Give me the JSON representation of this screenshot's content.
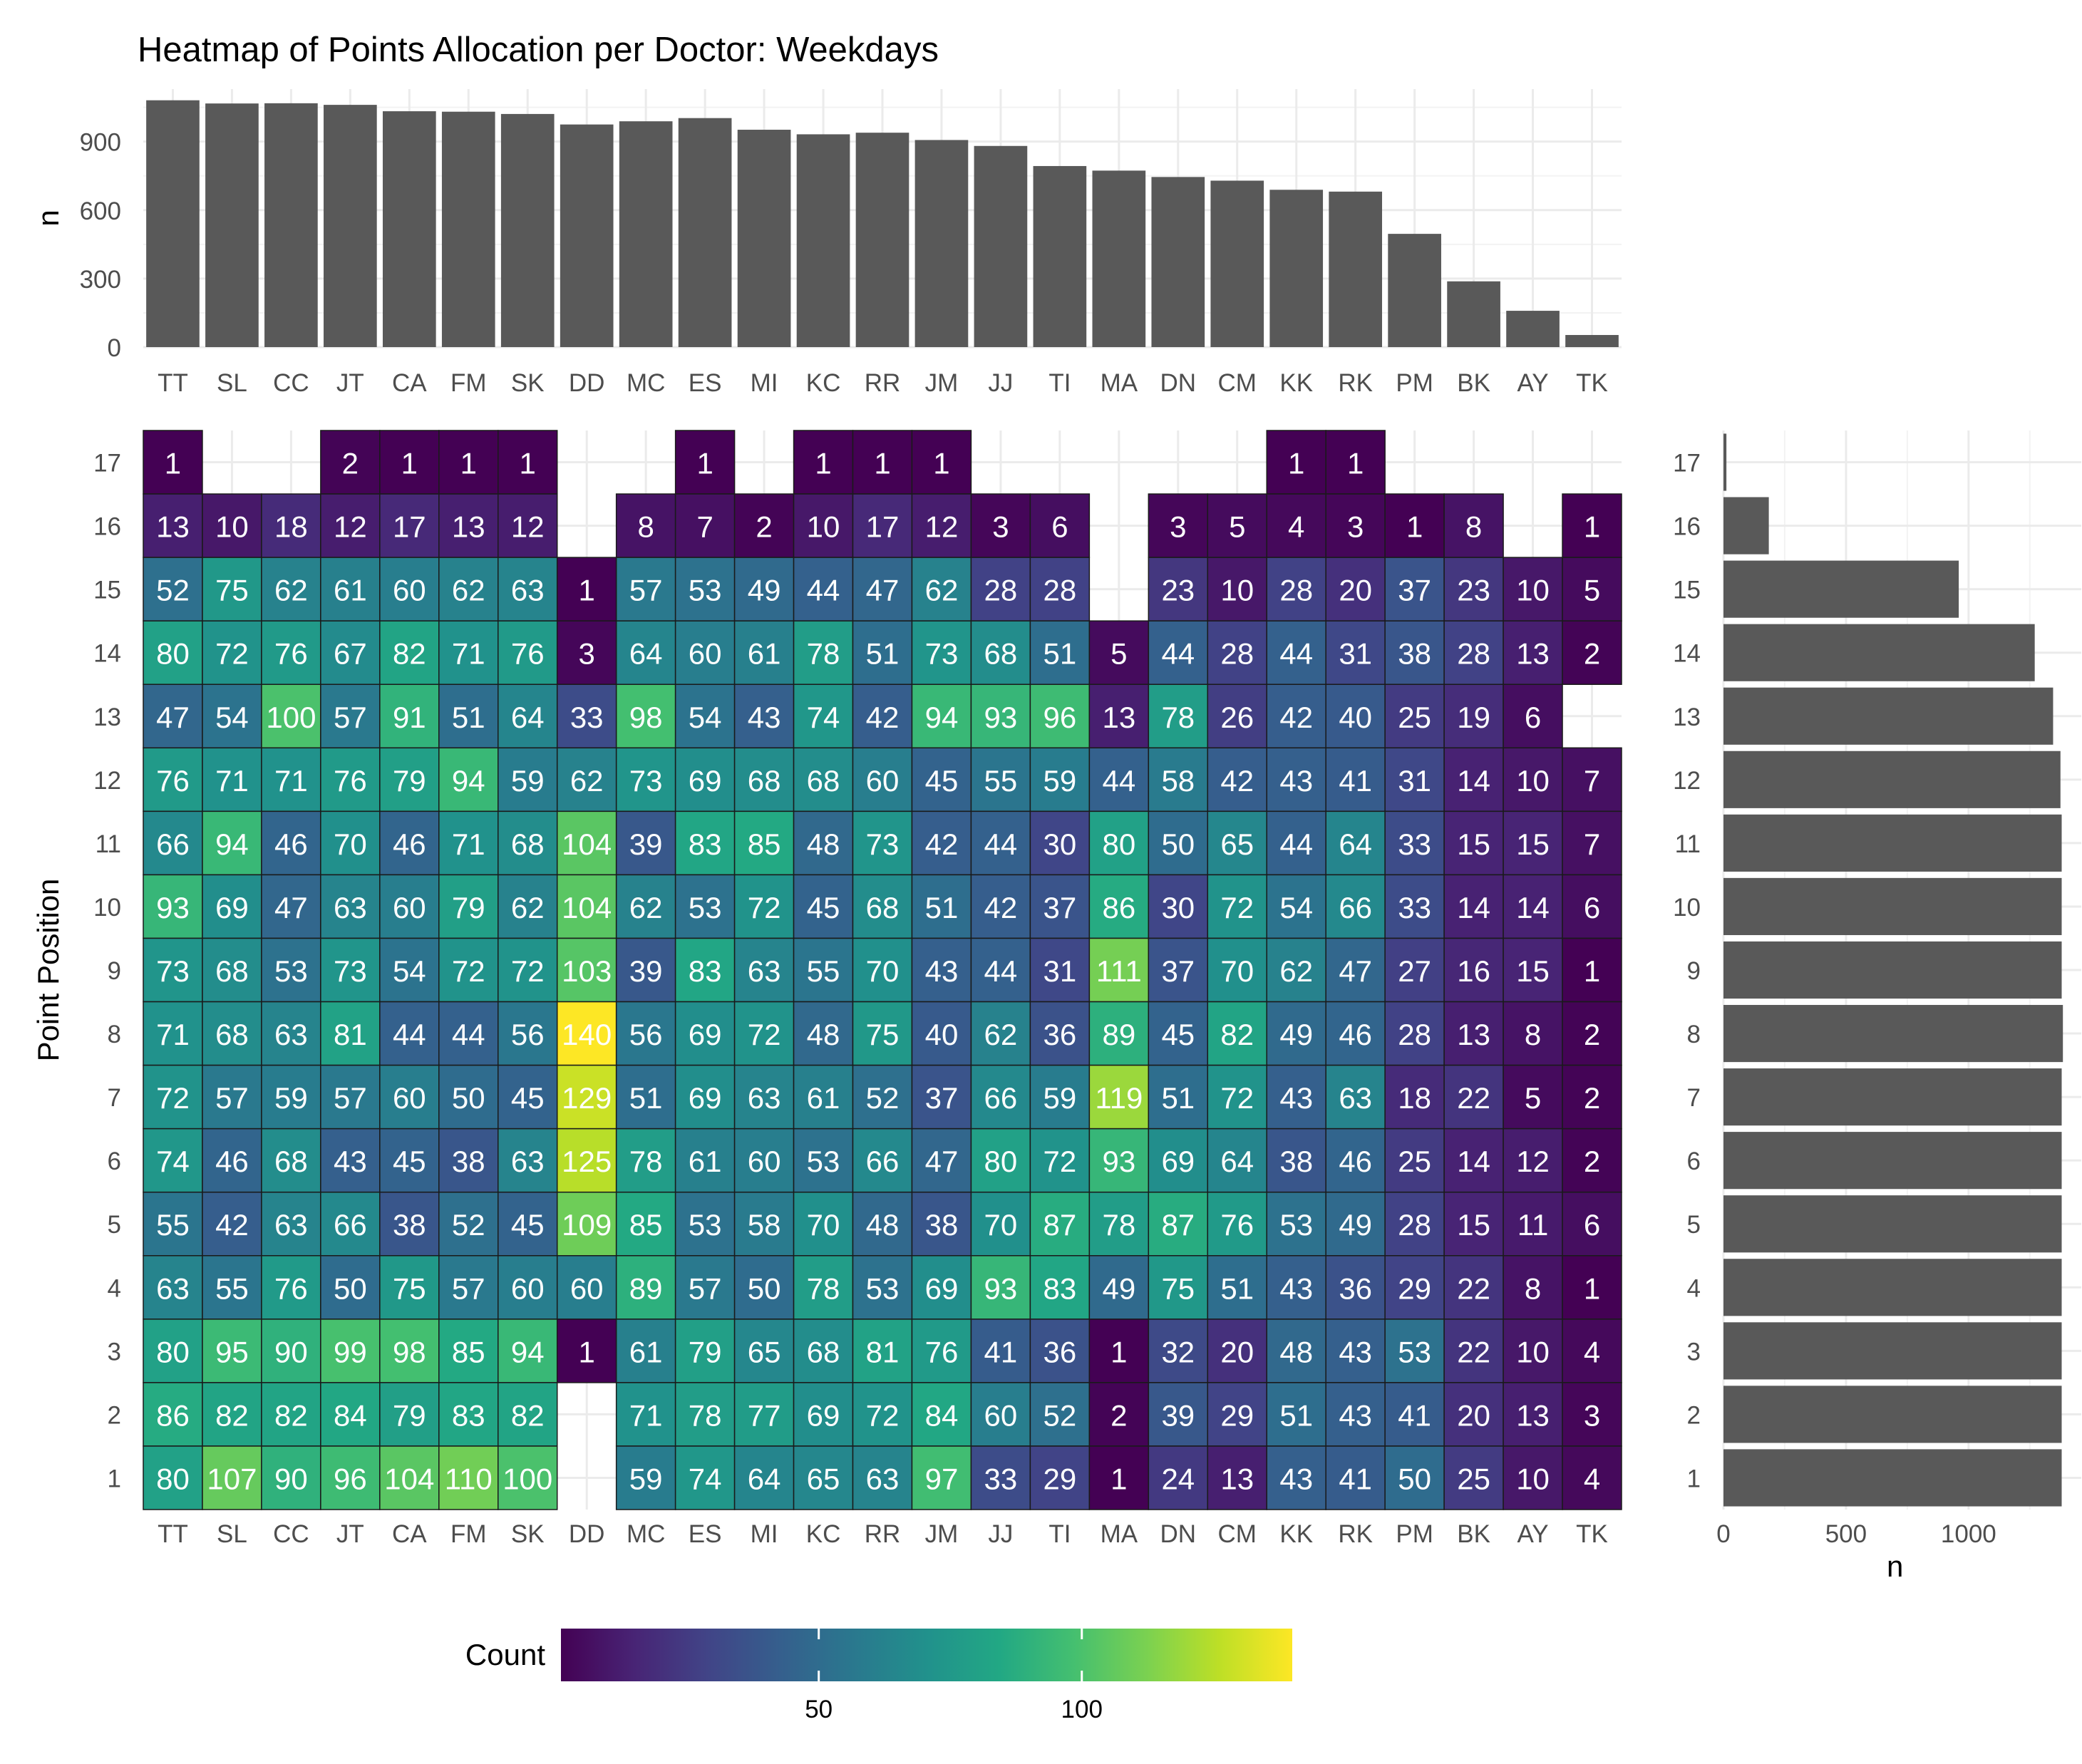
{
  "chart_data": {
    "type": "heatmap",
    "title": "Heatmap of Points Allocation per Doctor: Weekdays",
    "doctors": [
      "TT",
      "SL",
      "CC",
      "JT",
      "CA",
      "FM",
      "SK",
      "DD",
      "MC",
      "ES",
      "MI",
      "KC",
      "RR",
      "JM",
      "JJ",
      "TI",
      "MA",
      "DN",
      "CM",
      "KK",
      "RK",
      "PM",
      "BK",
      "AY",
      "TK"
    ],
    "positions": [
      17,
      16,
      15,
      14,
      13,
      12,
      11,
      10,
      9,
      8,
      7,
      6,
      5,
      4,
      3,
      2,
      1
    ],
    "counts": [
      [
        1,
        null,
        null,
        2,
        1,
        1,
        1,
        null,
        null,
        1,
        null,
        1,
        1,
        1,
        null,
        null,
        null,
        null,
        null,
        1,
        1,
        null,
        null,
        null,
        null
      ],
      [
        13,
        10,
        18,
        12,
        17,
        13,
        12,
        null,
        8,
        7,
        2,
        10,
        17,
        12,
        3,
        6,
        null,
        3,
        5,
        4,
        3,
        1,
        8,
        null,
        1
      ],
      [
        52,
        75,
        62,
        61,
        60,
        62,
        63,
        1,
        57,
        53,
        49,
        44,
        47,
        62,
        28,
        28,
        null,
        23,
        10,
        28,
        20,
        37,
        23,
        10,
        5
      ],
      [
        80,
        72,
        76,
        67,
        82,
        71,
        76,
        3,
        64,
        60,
        61,
        78,
        51,
        73,
        68,
        51,
        5,
        44,
        28,
        44,
        31,
        38,
        28,
        13,
        2
      ],
      [
        47,
        54,
        100,
        57,
        91,
        51,
        64,
        33,
        98,
        54,
        43,
        74,
        42,
        94,
        93,
        96,
        13,
        78,
        26,
        42,
        40,
        25,
        19,
        6,
        null
      ],
      [
        76,
        71,
        71,
        76,
        79,
        94,
        59,
        62,
        73,
        69,
        68,
        68,
        60,
        45,
        55,
        59,
        44,
        58,
        42,
        43,
        41,
        31,
        14,
        10,
        7
      ],
      [
        66,
        94,
        46,
        70,
        46,
        71,
        68,
        104,
        39,
        83,
        85,
        48,
        73,
        42,
        44,
        30,
        80,
        50,
        65,
        44,
        64,
        33,
        15,
        15,
        7
      ],
      [
        93,
        69,
        47,
        63,
        60,
        79,
        62,
        104,
        62,
        53,
        72,
        45,
        68,
        51,
        42,
        37,
        86,
        30,
        72,
        54,
        66,
        33,
        14,
        14,
        6
      ],
      [
        73,
        68,
        53,
        73,
        54,
        72,
        72,
        103,
        39,
        83,
        63,
        55,
        70,
        43,
        44,
        31,
        111,
        37,
        70,
        62,
        47,
        27,
        16,
        15,
        1
      ],
      [
        71,
        68,
        63,
        81,
        44,
        44,
        56,
        140,
        56,
        69,
        72,
        48,
        75,
        40,
        62,
        36,
        89,
        45,
        82,
        49,
        46,
        28,
        13,
        8,
        2
      ],
      [
        72,
        57,
        59,
        57,
        60,
        50,
        45,
        129,
        51,
        69,
        63,
        61,
        52,
        37,
        66,
        59,
        119,
        51,
        72,
        43,
        63,
        18,
        22,
        5,
        2
      ],
      [
        74,
        46,
        68,
        43,
        45,
        38,
        63,
        125,
        78,
        61,
        60,
        53,
        66,
        47,
        80,
        72,
        93,
        69,
        64,
        38,
        46,
        25,
        14,
        12,
        2
      ],
      [
        55,
        42,
        63,
        66,
        38,
        52,
        45,
        109,
        85,
        53,
        58,
        70,
        48,
        38,
        70,
        87,
        78,
        87,
        76,
        53,
        49,
        28,
        15,
        11,
        6
      ],
      [
        63,
        55,
        76,
        50,
        75,
        57,
        60,
        60,
        89,
        57,
        50,
        78,
        53,
        69,
        93,
        83,
        49,
        75,
        51,
        43,
        36,
        29,
        22,
        8,
        1
      ],
      [
        80,
        95,
        90,
        99,
        98,
        85,
        94,
        1,
        61,
        79,
        65,
        68,
        81,
        76,
        41,
        36,
        1,
        32,
        20,
        48,
        43,
        53,
        22,
        10,
        4
      ],
      [
        86,
        82,
        82,
        84,
        79,
        83,
        82,
        null,
        71,
        78,
        77,
        69,
        72,
        84,
        60,
        52,
        2,
        39,
        29,
        51,
        43,
        41,
        20,
        13,
        3
      ],
      [
        80,
        107,
        90,
        96,
        104,
        110,
        100,
        null,
        59,
        74,
        64,
        65,
        63,
        97,
        33,
        29,
        1,
        24,
        13,
        43,
        41,
        50,
        25,
        10,
        4
      ]
    ],
    "top_bar": {
      "ylabel": "n",
      "yticks": [
        0,
        300,
        600,
        900
      ],
      "ylim": [
        0,
        1130
      ],
      "values": [
        1081,
        1067,
        1068,
        1061,
        1033,
        1031,
        1021,
        975,
        989,
        1003,
        952,
        932,
        939,
        907,
        881,
        793,
        773,
        745,
        729,
        689,
        681,
        496,
        288,
        159,
        53
      ]
    },
    "side_bar": {
      "xlabel": "n",
      "xticks": [
        0,
        500,
        1000
      ],
      "xlim": [
        0,
        1460
      ],
      "values": [
        12,
        185,
        960,
        1270,
        1345,
        1375,
        1380,
        1380,
        1380,
        1385,
        1380,
        1380,
        1380,
        1380,
        1380,
        1380,
        1380
      ]
    },
    "ylabel": "Point Position",
    "legend": {
      "title": "Count",
      "min": 1,
      "max": 140,
      "ticks": [
        50,
        100
      ],
      "placement": "bottom"
    }
  }
}
